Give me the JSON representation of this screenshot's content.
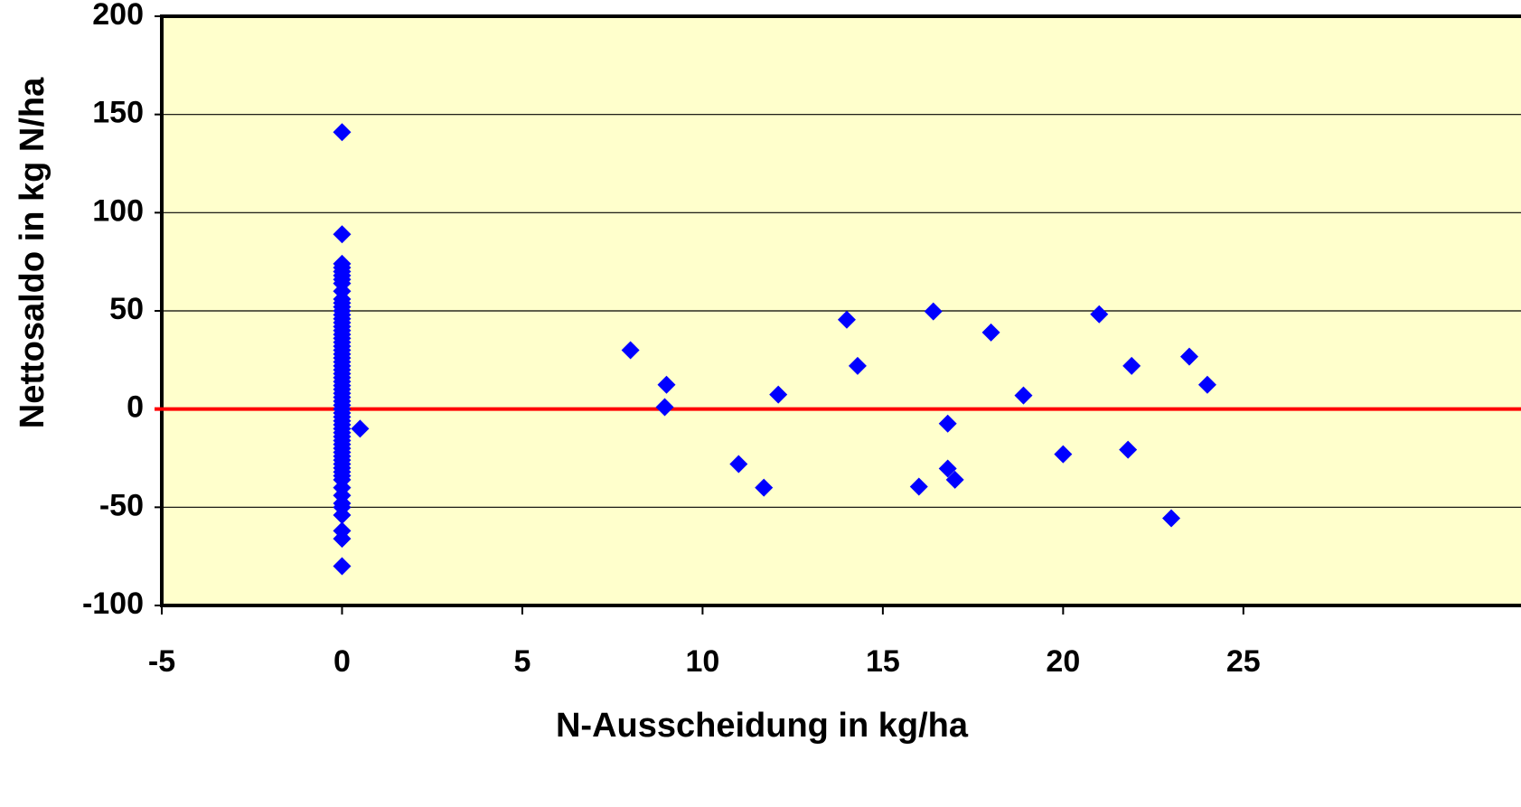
{
  "chart_data": {
    "type": "scatter",
    "x_label": "N-Ausscheidung in kg/ha",
    "y_label": "Nettosaldo  in kg N/ha",
    "xlim": [
      -5,
      32.7
    ],
    "ylim": [
      -100,
      200
    ],
    "xticks": [
      -5,
      0,
      5,
      10,
      15,
      20,
      25
    ],
    "yticks": [
      -100,
      -50,
      0,
      50,
      100,
      150,
      200
    ],
    "grid": true,
    "background": "#ffffcc",
    "reference_line": {
      "value": 0,
      "color": "#ff0000"
    },
    "series": [
      {
        "color": "#0000ff",
        "marker": "diamond",
        "x": [
          0,
          0,
          0,
          0,
          0,
          0,
          0,
          0,
          0,
          0,
          0,
          0,
          0,
          0,
          0,
          0,
          0,
          0,
          0,
          0,
          0,
          0,
          0,
          0,
          0,
          0,
          0,
          0,
          0,
          0,
          0,
          0,
          0,
          0,
          0,
          0,
          0,
          0,
          0,
          0,
          0,
          0,
          0,
          0,
          0,
          0,
          0,
          0,
          0,
          0,
          0,
          0,
          0,
          0,
          0,
          0,
          0,
          0,
          0,
          0,
          0,
          0,
          0,
          0,
          0.5,
          8.0,
          9.0,
          8.95,
          11.0,
          11.7,
          12.1,
          14.0,
          14.3,
          16.0,
          16.4,
          16.8,
          16.8,
          17.0,
          18.0,
          18.9,
          20.0,
          21.0,
          21.8,
          21.9,
          23.0,
          23.5,
          24.0
        ],
        "values": [
          141,
          89,
          74,
          72,
          70,
          68,
          66,
          64,
          60,
          56,
          54,
          52,
          50,
          48,
          46,
          44,
          42,
          40,
          38,
          36,
          34,
          32,
          30,
          28,
          26,
          24,
          22,
          20,
          18,
          16,
          14,
          12,
          10,
          8,
          6,
          4,
          2,
          0,
          -2,
          -4,
          -6,
          -8,
          -10,
          -12,
          -14,
          -16,
          -18,
          -20,
          -22,
          -24,
          -26,
          -28,
          -30,
          -32,
          -34,
          -36,
          -40,
          -44,
          -48,
          -50,
          -54,
          -62,
          -66,
          -80,
          -10,
          30,
          12.4,
          1,
          -28,
          -40,
          7.4,
          45.5,
          22,
          -39.5,
          49.7,
          -7.4,
          -30.3,
          -36,
          39,
          6.9,
          -23,
          48.3,
          -20.7,
          22,
          -55.6,
          26.7,
          12.4
        ]
      }
    ]
  }
}
